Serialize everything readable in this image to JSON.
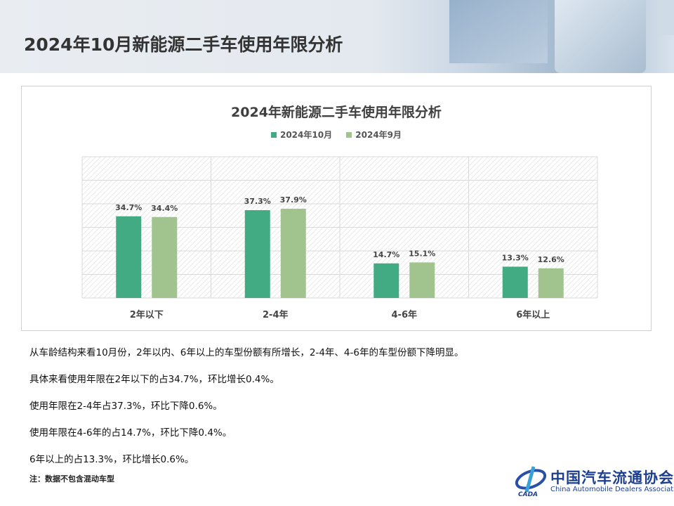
{
  "header": {
    "title": "2024年10月新能源二手车使用年限分析"
  },
  "chart_data": {
    "type": "bar",
    "title": "2024年新能源二手车使用年限分析",
    "categories": [
      "2年以下",
      "2-4年",
      "4-6年",
      "6年以上"
    ],
    "series": [
      {
        "name": "2024年10月",
        "values": [
          34.7,
          37.3,
          14.7,
          13.3
        ],
        "labels": [
          "34.7%",
          "37.3%",
          "14.7%",
          "13.3%"
        ],
        "color": "#43ab84"
      },
      {
        "name": "2024年9月",
        "values": [
          34.4,
          37.9,
          15.1,
          12.6
        ],
        "labels": [
          "34.4%",
          "37.9%",
          "15.1%",
          "12.6%"
        ],
        "color": "#a1c48f"
      }
    ],
    "ylim": [
      0,
      60
    ],
    "grid": true,
    "legend": "top",
    "unit": "%"
  },
  "text": [
    "从车龄结构来看10月份，2年以内、6年以上的车型份额有所增长，2-4年、4-6年的车型份额下降明显。",
    "具体来看使用年限在2年以下的占34.7%，环比增长0.4%。",
    "使用年限在2-4年占37.3%，环比下降0.6%。",
    "使用年限在4-6年的占14.7%，环比下降0.4%。",
    "6年以上的占13.3%，环比增长0.6%。"
  ],
  "note": "注：数据不包含混动车型",
  "logo": {
    "cn": "中国汽车流通协会",
    "en": "China Automobile Dealers Association",
    "abbr": "CADA"
  }
}
